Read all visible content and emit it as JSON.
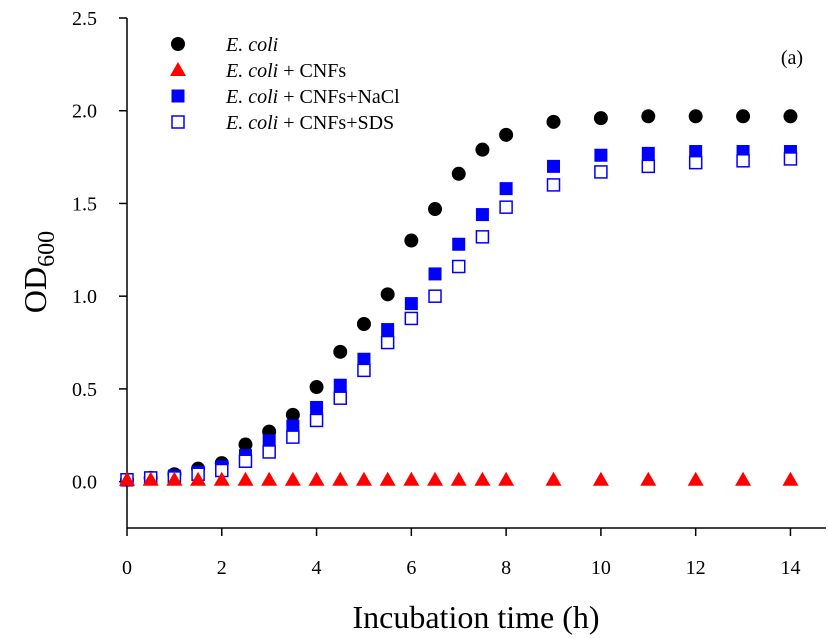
{
  "chart_data": {
    "type": "scatter",
    "panel_label": "(a)",
    "xlabel": "Incubation time (h)",
    "ylabel_main": "OD",
    "ylabel_sub": "600",
    "xlim": [
      0,
      14.75
    ],
    "ylim": [
      -0.25,
      2.5
    ],
    "xticks": [
      0,
      2,
      4,
      6,
      8,
      10,
      12,
      14
    ],
    "yticks": [
      0.0,
      0.5,
      1.0,
      1.5,
      2.0,
      2.5
    ],
    "ytick_labels": [
      "0.0",
      "0.5",
      "1.0",
      "1.5",
      "2.0",
      "2.5"
    ],
    "grid": false,
    "legend_position": "top-left",
    "series": [
      {
        "name_italic": "E. coli",
        "name_rest": "",
        "marker": "filled-circle",
        "color": "#000000",
        "x": [
          0,
          0.5,
          1,
          1.5,
          2,
          2.5,
          3,
          3.5,
          4,
          4.5,
          5,
          5.5,
          6,
          6.5,
          7,
          7.5,
          8,
          9,
          10,
          11,
          12,
          13,
          14
        ],
        "y": [
          0.01,
          0.02,
          0.04,
          0.07,
          0.1,
          0.2,
          0.27,
          0.36,
          0.51,
          0.7,
          0.85,
          1.01,
          1.3,
          1.47,
          1.66,
          1.79,
          1.87,
          1.94,
          1.96,
          1.97,
          1.97,
          1.97,
          1.97
        ]
      },
      {
        "name_italic": "E. coli",
        "name_rest": " + CNFs",
        "marker": "filled-triangle",
        "color": "#ff0000",
        "x": [
          0,
          0.5,
          1,
          1.5,
          2,
          2.5,
          3,
          3.5,
          4,
          4.5,
          5,
          5.5,
          6,
          6.5,
          7,
          7.5,
          8,
          9,
          10,
          11,
          12,
          13,
          14
        ],
        "y": [
          0.01,
          0.01,
          0.01,
          0.01,
          0.01,
          0.01,
          0.01,
          0.01,
          0.01,
          0.01,
          0.01,
          0.01,
          0.01,
          0.01,
          0.01,
          0.01,
          0.01,
          0.01,
          0.01,
          0.01,
          0.01,
          0.01,
          0.01
        ]
      },
      {
        "name_italic": "E. coli",
        "name_rest": " + CNFs+NaCl",
        "marker": "filled-square",
        "color": "#0000ff",
        "x": [
          0,
          0.5,
          1,
          1.5,
          2,
          2.5,
          3,
          3.5,
          4,
          4.5,
          5,
          5.5,
          6,
          6.5,
          7,
          7.5,
          8,
          9,
          10,
          11,
          12,
          13,
          14
        ],
        "y": [
          0.01,
          0.02,
          0.03,
          0.05,
          0.08,
          0.14,
          0.22,
          0.3,
          0.4,
          0.52,
          0.66,
          0.82,
          0.96,
          1.12,
          1.28,
          1.44,
          1.58,
          1.7,
          1.76,
          1.77,
          1.78,
          1.78,
          1.78
        ]
      },
      {
        "name_italic": "E. coli",
        "name_rest": " + CNFs+SDS",
        "marker": "open-square",
        "color": "#0000ff",
        "x": [
          0,
          0.5,
          1,
          1.5,
          2,
          2.5,
          3,
          3.5,
          4,
          4.5,
          5,
          5.5,
          6,
          6.5,
          7,
          7.5,
          8,
          9,
          10,
          11,
          12,
          13,
          14
        ],
        "y": [
          0.01,
          0.02,
          0.02,
          0.04,
          0.06,
          0.11,
          0.16,
          0.24,
          0.33,
          0.45,
          0.6,
          0.75,
          0.88,
          1.0,
          1.16,
          1.32,
          1.48,
          1.6,
          1.67,
          1.7,
          1.72,
          1.73,
          1.74
        ]
      }
    ]
  }
}
